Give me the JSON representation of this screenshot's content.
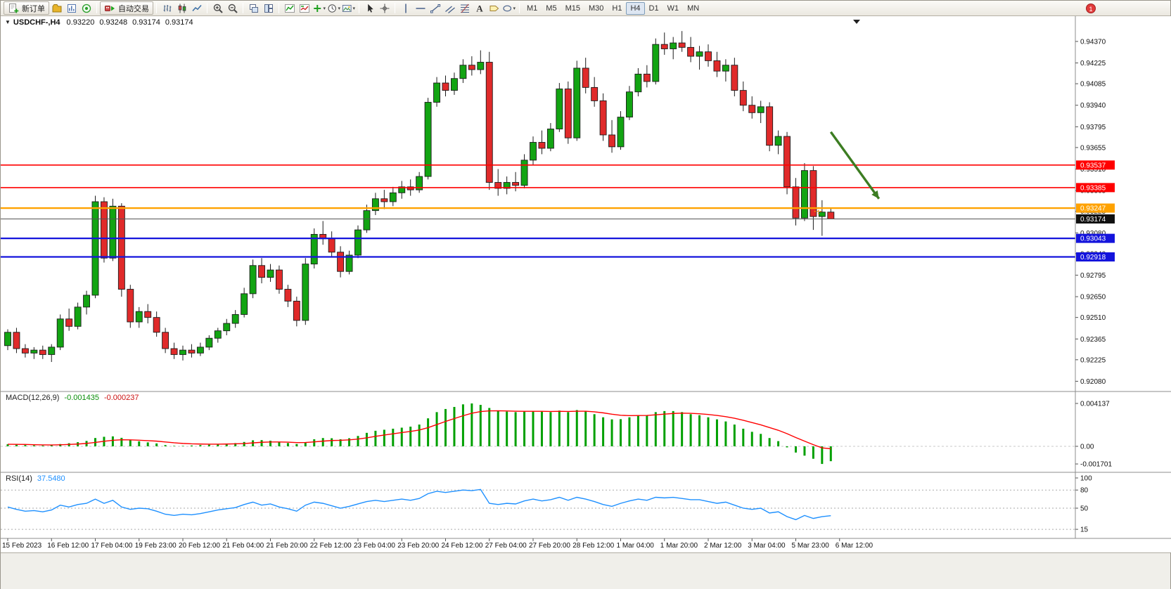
{
  "toolbar": {
    "new_order_label": "新订单",
    "autotrading_label": "自动交易",
    "timeframes": [
      "M1",
      "M5",
      "M15",
      "M30",
      "H1",
      "H4",
      "D1",
      "W1",
      "MN"
    ],
    "active_timeframe": "H4",
    "badge": "1"
  },
  "chart": {
    "title": "USDCHF-,H4",
    "ohlc": {
      "open": "0.93220",
      "high": "0.93248",
      "low": "0.93174",
      "close": "0.93174"
    }
  },
  "macd": {
    "label": "MACD(12,26,9)",
    "main_value": "-0.001435",
    "signal_value": "-0.000237",
    "axis": [
      "0.004137",
      "0.00",
      "-0.001701"
    ]
  },
  "rsi": {
    "label": "RSI(14)",
    "value": "37.5480",
    "levels": [
      100,
      80,
      50,
      15
    ]
  },
  "hlines": [
    {
      "price": 0.93537,
      "label": "0.93537",
      "color": "#ff0000",
      "width": 1.6
    },
    {
      "price": 0.93385,
      "label": "0.93385",
      "color": "#ff0000",
      "width": 1.6
    },
    {
      "price": 0.93247,
      "label": "0.93247",
      "color": "#ffa200",
      "width": 2.4
    },
    {
      "price": 0.93043,
      "label": "0.93043",
      "color": "#1414dc",
      "width": 2.2
    },
    {
      "price": 0.92918,
      "label": "0.92918",
      "color": "#1414dc",
      "width": 2.2
    }
  ],
  "current_price": {
    "price": 0.93174,
    "label": "0.93174",
    "line_color": "#555555",
    "label_bg": "#101010"
  },
  "arrow_annotation": {
    "i1": 94,
    "p1": 0.9376,
    "i2": 99.5,
    "p2": 0.9331,
    "color": "#3c7d22"
  },
  "cross_marker": {
    "i": 92.6,
    "p": 0.93225,
    "color": "#ff9900"
  },
  "price_axis": [
    "0.94370",
    "0.94225",
    "0.94085",
    "0.93940",
    "0.93795",
    "0.93655",
    "0.93510",
    "0.93365",
    "0.93225",
    "0.93080",
    "0.92940",
    "0.92795",
    "0.92650",
    "0.92510",
    "0.92365",
    "0.92225",
    "0.92080"
  ],
  "time_axis": [
    "15 Feb 2023",
    "16 Feb 12:00",
    "17 Feb 04:00",
    "19 Feb 23:00",
    "20 Feb 12:00",
    "21 Feb 04:00",
    "21 Feb 20:00",
    "22 Feb 12:00",
    "23 Feb 04:00",
    "23 Feb 20:00",
    "24 Feb 12:00",
    "27 Feb 04:00",
    "27 Feb 20:00",
    "28 Feb 12:00",
    "1 Mar 04:00",
    "1 Mar 20:00",
    "2 Mar 12:00",
    "3 Mar 04:00",
    "5 Mar 23:00",
    "6 Mar 12:00"
  ],
  "chart_data": {
    "type": "candlestick",
    "symbol": "USDCHF-",
    "timeframe": "H4",
    "title": "USDCHF-,H4  0.93220 0.93248 0.93174 0.93174",
    "price_range": {
      "top": 0.94455,
      "bottom": 0.9203
    },
    "macd_range": {
      "max": 0.004137,
      "min": -0.001701
    },
    "rsi_range": [
      0,
      100
    ],
    "colors": {
      "up": "#12a412",
      "down": "#e02a2a",
      "wick": "#1c1c1c",
      "macd": "#00a000",
      "signal": "#ff0000",
      "rsi": "#1e90ff"
    },
    "candles": [
      [
        0.9232,
        0.9243,
        0.9229,
        0.9241
      ],
      [
        0.9241,
        0.9244,
        0.9227,
        0.923
      ],
      [
        0.923,
        0.9233,
        0.9224,
        0.9227
      ],
      [
        0.9227,
        0.9231,
        0.9223,
        0.9229
      ],
      [
        0.9229,
        0.9232,
        0.9223,
        0.9226
      ],
      [
        0.9226,
        0.9233,
        0.9221,
        0.9231
      ],
      [
        0.9231,
        0.9253,
        0.9229,
        0.925
      ],
      [
        0.925,
        0.9257,
        0.9242,
        0.9245
      ],
      [
        0.9245,
        0.9261,
        0.9243,
        0.9258
      ],
      [
        0.9258,
        0.9269,
        0.9253,
        0.9266
      ],
      [
        0.9266,
        0.9333,
        0.9264,
        0.9329
      ],
      [
        0.9329,
        0.9332,
        0.9288,
        0.9291
      ],
      [
        0.9291,
        0.9331,
        0.9289,
        0.9326
      ],
      [
        0.9326,
        0.9328,
        0.9265,
        0.927
      ],
      [
        0.927,
        0.9273,
        0.9244,
        0.9248
      ],
      [
        0.9248,
        0.9258,
        0.9244,
        0.9255
      ],
      [
        0.9255,
        0.926,
        0.9247,
        0.9251
      ],
      [
        0.9251,
        0.9255,
        0.9238,
        0.9241
      ],
      [
        0.9241,
        0.9244,
        0.9227,
        0.923
      ],
      [
        0.923,
        0.9234,
        0.9223,
        0.9226
      ],
      [
        0.9226,
        0.9232,
        0.9222,
        0.9229
      ],
      [
        0.9229,
        0.9233,
        0.9224,
        0.9227
      ],
      [
        0.9227,
        0.9234,
        0.9225,
        0.9231
      ],
      [
        0.9231,
        0.9239,
        0.9229,
        0.9237
      ],
      [
        0.9237,
        0.9244,
        0.9234,
        0.9242
      ],
      [
        0.9242,
        0.925,
        0.9239,
        0.9247
      ],
      [
        0.9247,
        0.9256,
        0.9244,
        0.9253
      ],
      [
        0.9253,
        0.9271,
        0.9251,
        0.9267
      ],
      [
        0.9267,
        0.929,
        0.9264,
        0.9286
      ],
      [
        0.9286,
        0.9291,
        0.9274,
        0.9278
      ],
      [
        0.9278,
        0.9287,
        0.9275,
        0.9283
      ],
      [
        0.9283,
        0.9286,
        0.9267,
        0.927
      ],
      [
        0.927,
        0.9273,
        0.9258,
        0.9262
      ],
      [
        0.9262,
        0.9265,
        0.9245,
        0.9249
      ],
      [
        0.9249,
        0.9291,
        0.9246,
        0.9287
      ],
      [
        0.9287,
        0.9311,
        0.9284,
        0.9307
      ],
      [
        0.9307,
        0.9316,
        0.93,
        0.9304
      ],
      [
        0.9304,
        0.9309,
        0.9292,
        0.9295
      ],
      [
        0.9295,
        0.9299,
        0.9278,
        0.9282
      ],
      [
        0.9282,
        0.9296,
        0.928,
        0.9293
      ],
      [
        0.9293,
        0.9313,
        0.9291,
        0.931
      ],
      [
        0.931,
        0.9327,
        0.9308,
        0.9323
      ],
      [
        0.9323,
        0.9335,
        0.932,
        0.9331
      ],
      [
        0.9331,
        0.9337,
        0.9324,
        0.9329
      ],
      [
        0.9329,
        0.9339,
        0.9326,
        0.9335
      ],
      [
        0.9335,
        0.9343,
        0.9331,
        0.9339
      ],
      [
        0.9339,
        0.9344,
        0.9333,
        0.9337
      ],
      [
        0.9337,
        0.9349,
        0.9335,
        0.9346
      ],
      [
        0.9346,
        0.9399,
        0.9344,
        0.9396
      ],
      [
        0.9396,
        0.9413,
        0.9393,
        0.9409
      ],
      [
        0.9409,
        0.9414,
        0.94,
        0.9404
      ],
      [
        0.9404,
        0.9416,
        0.9401,
        0.9412
      ],
      [
        0.9412,
        0.9425,
        0.9409,
        0.9421
      ],
      [
        0.9421,
        0.9427,
        0.9414,
        0.9418
      ],
      [
        0.9418,
        0.9431,
        0.9415,
        0.9423
      ],
      [
        0.9423,
        0.943,
        0.9337,
        0.9342
      ],
      [
        0.9342,
        0.9351,
        0.9333,
        0.9338
      ],
      [
        0.9338,
        0.9346,
        0.9334,
        0.9342
      ],
      [
        0.9342,
        0.9349,
        0.9336,
        0.934
      ],
      [
        0.934,
        0.9361,
        0.9338,
        0.9357
      ],
      [
        0.9357,
        0.9373,
        0.9354,
        0.9369
      ],
      [
        0.9369,
        0.9377,
        0.9361,
        0.9365
      ],
      [
        0.9365,
        0.9382,
        0.9363,
        0.9378
      ],
      [
        0.9378,
        0.9409,
        0.9376,
        0.9405
      ],
      [
        0.9405,
        0.941,
        0.9368,
        0.9372
      ],
      [
        0.9372,
        0.9424,
        0.937,
        0.9419
      ],
      [
        0.9419,
        0.9426,
        0.9402,
        0.9406
      ],
      [
        0.9406,
        0.9413,
        0.9393,
        0.9397
      ],
      [
        0.9397,
        0.9402,
        0.937,
        0.9374
      ],
      [
        0.9374,
        0.9384,
        0.9362,
        0.9366
      ],
      [
        0.9366,
        0.939,
        0.9364,
        0.9386
      ],
      [
        0.9386,
        0.9407,
        0.9384,
        0.9403
      ],
      [
        0.9403,
        0.9419,
        0.94,
        0.9415
      ],
      [
        0.9415,
        0.9421,
        0.9406,
        0.941
      ],
      [
        0.941,
        0.9439,
        0.9408,
        0.9435
      ],
      [
        0.9435,
        0.9443,
        0.9428,
        0.9432
      ],
      [
        0.9432,
        0.944,
        0.9425,
        0.9436
      ],
      [
        0.9436,
        0.9444,
        0.943,
        0.9433
      ],
      [
        0.9433,
        0.944,
        0.9423,
        0.9427
      ],
      [
        0.9427,
        0.9434,
        0.9418,
        0.943
      ],
      [
        0.943,
        0.9435,
        0.942,
        0.9424
      ],
      [
        0.9424,
        0.943,
        0.9413,
        0.9417
      ],
      [
        0.9417,
        0.9425,
        0.941,
        0.9421
      ],
      [
        0.9421,
        0.9426,
        0.94,
        0.9404
      ],
      [
        0.9404,
        0.941,
        0.939,
        0.9394
      ],
      [
        0.9394,
        0.94,
        0.9385,
        0.9389
      ],
      [
        0.9389,
        0.9397,
        0.9382,
        0.9393
      ],
      [
        0.9393,
        0.9396,
        0.9363,
        0.9367
      ],
      [
        0.9367,
        0.9377,
        0.9361,
        0.9373
      ],
      [
        0.9373,
        0.9376,
        0.9334,
        0.9339
      ],
      [
        0.9339,
        0.9345,
        0.9313,
        0.9318
      ],
      [
        0.9318,
        0.9355,
        0.9316,
        0.935
      ],
      [
        0.935,
        0.9353,
        0.931,
        0.9319
      ],
      [
        0.9319,
        0.933,
        0.9306,
        0.9322
      ],
      [
        0.9322,
        0.93248,
        0.93174,
        0.93174
      ]
    ],
    "macd_histogram": [
      0.0002,
      0.00016,
      0.00012,
      9e-05,
      7e-05,
      0.0001,
      0.00022,
      0.0003,
      0.0004,
      0.00052,
      0.0008,
      0.00092,
      0.00096,
      0.00082,
      0.0006,
      0.00048,
      0.00038,
      0.00028,
      0.00012,
      4e-05,
      4e-05,
      8e-05,
      0.00012,
      0.00016,
      0.00021,
      0.00026,
      0.00031,
      0.00042,
      0.00058,
      0.0006,
      0.00054,
      0.00044,
      0.00032,
      0.00022,
      0.0004,
      0.00068,
      0.0008,
      0.00078,
      0.00068,
      0.00078,
      0.001,
      0.0013,
      0.0015,
      0.0016,
      0.0017,
      0.0018,
      0.0019,
      0.0021,
      0.0027,
      0.0033,
      0.0036,
      0.0038,
      0.00405,
      0.004137,
      0.004,
      0.0037,
      0.00345,
      0.00335,
      0.0033,
      0.00335,
      0.0034,
      0.00335,
      0.0033,
      0.00345,
      0.0033,
      0.0035,
      0.0034,
      0.0031,
      0.0028,
      0.0026,
      0.00262,
      0.0028,
      0.003,
      0.003,
      0.0033,
      0.0034,
      0.0034,
      0.0033,
      0.0031,
      0.003,
      0.0028,
      0.0026,
      0.0024,
      0.0021,
      0.0017,
      0.0014,
      0.0012,
      0.0008,
      0.0005,
      -0.0001,
      -0.0006,
      -0.0009,
      -0.0012,
      -0.001701,
      -0.001435
    ],
    "macd_signal": [
      0.0002,
      0.00019,
      0.00018,
      0.00016,
      0.00014,
      0.00013,
      0.00015,
      0.00018,
      0.00022,
      0.00028,
      0.00038,
      0.00049,
      0.00058,
      0.00063,
      0.00062,
      0.00059,
      0.00055,
      0.0005,
      0.00042,
      0.00034,
      0.00028,
      0.00024,
      0.00022,
      0.00021,
      0.00021,
      0.00022,
      0.00024,
      0.00027,
      0.00033,
      0.00039,
      0.00042,
      0.00042,
      0.0004,
      0.00036,
      0.00037,
      0.00043,
      0.0005,
      0.00056,
      0.00058,
      0.00062,
      0.0007,
      0.00082,
      0.00096,
      0.00109,
      0.00121,
      0.00133,
      0.00144,
      0.00157,
      0.0018,
      0.0021,
      0.0024,
      0.00268,
      0.00295,
      0.00319,
      0.00335,
      0.00342,
      0.00343,
      0.00341,
      0.00339,
      0.00338,
      0.00338,
      0.00338,
      0.00336,
      0.00338,
      0.00336,
      0.00339,
      0.00339,
      0.00333,
      0.00323,
      0.0031,
      0.003,
      0.00296,
      0.00297,
      0.00298,
      0.00304,
      0.00311,
      0.00317,
      0.0032,
      0.00318,
      0.00314,
      0.00307,
      0.00298,
      0.00286,
      0.00271,
      0.00251,
      0.00229,
      0.00207,
      0.00181,
      0.00155,
      0.00122,
      0.00085,
      0.0005,
      0.00016,
      -0.00015,
      -0.000237
    ],
    "rsi": [
      52,
      48,
      45,
      46,
      44,
      47,
      55,
      52,
      56,
      58,
      65,
      58,
      63,
      52,
      48,
      50,
      49,
      45,
      40,
      38,
      40,
      39,
      41,
      44,
      47,
      49,
      51,
      56,
      60,
      55,
      57,
      52,
      49,
      45,
      55,
      60,
      58,
      54,
      50,
      53,
      57,
      61,
      63,
      61,
      63,
      65,
      63,
      66,
      74,
      78,
      76,
      78,
      80,
      79,
      81,
      58,
      56,
      58,
      57,
      62,
      65,
      62,
      64,
      68,
      63,
      68,
      65,
      61,
      56,
      53,
      58,
      62,
      65,
      63,
      68,
      67,
      68,
      66,
      64,
      64,
      61,
      58,
      60,
      55,
      50,
      48,
      50,
      42,
      44,
      36,
      31,
      38,
      33,
      36,
      37.548
    ]
  }
}
